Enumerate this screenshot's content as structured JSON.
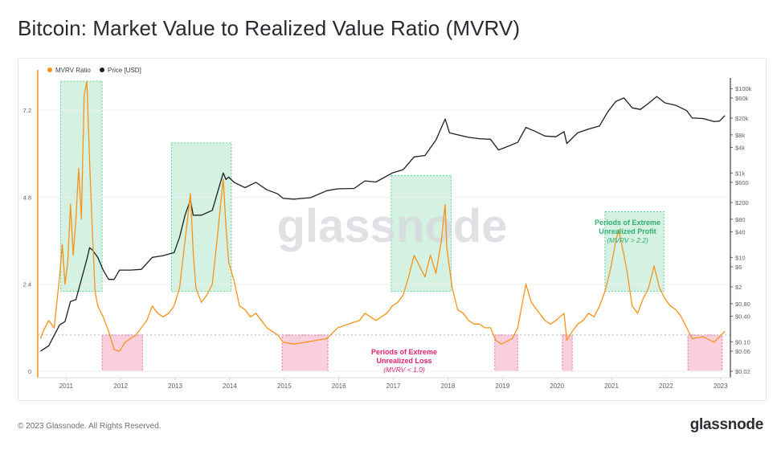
{
  "title": "Bitcoin: Market Value to Realized Value Ratio (MVRV)",
  "footer": "© 2023 Glassnode. All Rights Reserved.",
  "brand": "glassnode",
  "watermark": "glassnode",
  "colors": {
    "mvrv": "#f7931a",
    "price": "#1d1f22",
    "profit_fill": "#cdeedd",
    "profit_stroke": "#3ec486",
    "loss_fill": "#f9c5d7",
    "loss_stroke": "#ec4c86",
    "profit_text": "#2fae6f",
    "loss_text": "#e3226b"
  },
  "annotations": {
    "profit": {
      "line1": "Periods of Extreme",
      "line2": "Unrealized Profit",
      "line3": "(MVRV > 2.2)"
    },
    "loss": {
      "line1": "Periods of Extreme",
      "line2": "Unrealized Loss",
      "line3": "(MVRV < 1.0)"
    }
  },
  "chart_data": {
    "type": "line",
    "title": "Bitcoin: Market Value to Realized Value Ratio (MVRV)",
    "legend": {
      "placement": "top-left",
      "entries": [
        "MVRV Ratio",
        "Price [USD]"
      ]
    },
    "x_ticks": [
      "2011",
      "2012",
      "2013",
      "2014",
      "2015",
      "2016",
      "2017",
      "2018",
      "2019",
      "2020",
      "2021",
      "2022",
      "2023"
    ],
    "y_left": {
      "ticks": [
        "0",
        "2.4",
        "4.8",
        "7.2"
      ],
      "range": [
        0,
        8
      ]
    },
    "y_right": {
      "scale": "log",
      "ticks": [
        "$100k",
        "$60k",
        "$20k",
        "$8k",
        "$4k",
        "$1k",
        "$600",
        "$200",
        "$80",
        "$40",
        "$10",
        "$6",
        "$2",
        "$0.80",
        "$0.40",
        "$0.10",
        "$0.06",
        "$0.02"
      ]
    },
    "thresholds": {
      "profit": 2.2,
      "loss": 1.0
    },
    "series": [
      {
        "name": "MVRV Ratio",
        "axis": "left",
        "points": [
          [
            2010.55,
            0.9
          ],
          [
            2010.6,
            1.1
          ],
          [
            2010.7,
            1.4
          ],
          [
            2010.8,
            1.2
          ],
          [
            2010.9,
            2.6
          ],
          [
            2010.95,
            3.5
          ],
          [
            2011.0,
            2.4
          ],
          [
            2011.05,
            3.0
          ],
          [
            2011.1,
            4.6
          ],
          [
            2011.15,
            3.2
          ],
          [
            2011.2,
            4.2
          ],
          [
            2011.25,
            5.6
          ],
          [
            2011.3,
            4.2
          ],
          [
            2011.35,
            7.6
          ],
          [
            2011.4,
            8.0
          ],
          [
            2011.45,
            5.8
          ],
          [
            2011.5,
            3.9
          ],
          [
            2011.55,
            2.2
          ],
          [
            2011.6,
            1.8
          ],
          [
            2011.7,
            1.5
          ],
          [
            2011.8,
            1.1
          ],
          [
            2011.9,
            0.6
          ],
          [
            2012.0,
            0.55
          ],
          [
            2012.1,
            0.8
          ],
          [
            2012.2,
            0.9
          ],
          [
            2012.3,
            1.0
          ],
          [
            2012.4,
            1.2
          ],
          [
            2012.5,
            1.4
          ],
          [
            2012.6,
            1.8
          ],
          [
            2012.7,
            1.6
          ],
          [
            2012.8,
            1.5
          ],
          [
            2012.9,
            1.6
          ],
          [
            2013.0,
            1.8
          ],
          [
            2013.1,
            2.3
          ],
          [
            2013.2,
            3.6
          ],
          [
            2013.3,
            4.9
          ],
          [
            2013.35,
            3.3
          ],
          [
            2013.4,
            2.3
          ],
          [
            2013.5,
            1.9
          ],
          [
            2013.6,
            2.1
          ],
          [
            2013.7,
            2.4
          ],
          [
            2013.8,
            3.8
          ],
          [
            2013.9,
            5.3
          ],
          [
            2013.95,
            4.0
          ],
          [
            2014.0,
            3.0
          ],
          [
            2014.1,
            2.5
          ],
          [
            2014.2,
            1.8
          ],
          [
            2014.3,
            1.7
          ],
          [
            2014.4,
            1.5
          ],
          [
            2014.5,
            1.6
          ],
          [
            2014.6,
            1.4
          ],
          [
            2014.7,
            1.2
          ],
          [
            2014.8,
            1.1
          ],
          [
            2014.9,
            1.0
          ],
          [
            2015.0,
            0.8
          ],
          [
            2015.2,
            0.75
          ],
          [
            2015.4,
            0.8
          ],
          [
            2015.6,
            0.85
          ],
          [
            2015.8,
            0.9
          ],
          [
            2016.0,
            1.2
          ],
          [
            2016.2,
            1.3
          ],
          [
            2016.4,
            1.4
          ],
          [
            2016.5,
            1.6
          ],
          [
            2016.7,
            1.4
          ],
          [
            2016.9,
            1.6
          ],
          [
            2017.0,
            1.8
          ],
          [
            2017.1,
            1.9
          ],
          [
            2017.2,
            2.1
          ],
          [
            2017.3,
            2.6
          ],
          [
            2017.4,
            3.2
          ],
          [
            2017.5,
            2.9
          ],
          [
            2017.6,
            2.6
          ],
          [
            2017.7,
            3.2
          ],
          [
            2017.8,
            2.7
          ],
          [
            2017.9,
            3.6
          ],
          [
            2017.97,
            4.6
          ],
          [
            2018.0,
            3.4
          ],
          [
            2018.1,
            2.3
          ],
          [
            2018.2,
            1.7
          ],
          [
            2018.3,
            1.6
          ],
          [
            2018.4,
            1.4
          ],
          [
            2018.5,
            1.3
          ],
          [
            2018.6,
            1.3
          ],
          [
            2018.7,
            1.2
          ],
          [
            2018.8,
            1.2
          ],
          [
            2018.9,
            0.85
          ],
          [
            2019.0,
            0.75
          ],
          [
            2019.2,
            0.9
          ],
          [
            2019.3,
            1.2
          ],
          [
            2019.45,
            2.4
          ],
          [
            2019.55,
            1.9
          ],
          [
            2019.7,
            1.6
          ],
          [
            2019.8,
            1.4
          ],
          [
            2019.9,
            1.3
          ],
          [
            2020.0,
            1.4
          ],
          [
            2020.15,
            1.6
          ],
          [
            2020.2,
            0.85
          ],
          [
            2020.3,
            1.1
          ],
          [
            2020.4,
            1.3
          ],
          [
            2020.5,
            1.4
          ],
          [
            2020.6,
            1.6
          ],
          [
            2020.7,
            1.5
          ],
          [
            2020.8,
            1.8
          ],
          [
            2020.9,
            2.2
          ],
          [
            2021.0,
            2.8
          ],
          [
            2021.1,
            3.6
          ],
          [
            2021.15,
            3.9
          ],
          [
            2021.25,
            3.2
          ],
          [
            2021.3,
            2.8
          ],
          [
            2021.4,
            1.8
          ],
          [
            2021.5,
            1.6
          ],
          [
            2021.6,
            2.0
          ],
          [
            2021.7,
            2.3
          ],
          [
            2021.8,
            2.9
          ],
          [
            2021.9,
            2.3
          ],
          [
            2022.0,
            2.0
          ],
          [
            2022.1,
            1.8
          ],
          [
            2022.2,
            1.7
          ],
          [
            2022.3,
            1.5
          ],
          [
            2022.4,
            1.2
          ],
          [
            2022.5,
            0.9
          ],
          [
            2022.7,
            0.95
          ],
          [
            2022.9,
            0.8
          ],
          [
            2023.0,
            0.95
          ],
          [
            2023.1,
            1.1
          ]
        ]
      },
      {
        "name": "Price [USD]",
        "axis": "right",
        "points": [
          [
            2010.55,
            0.06
          ],
          [
            2010.7,
            0.08
          ],
          [
            2010.9,
            0.25
          ],
          [
            2011.0,
            0.3
          ],
          [
            2011.1,
            0.9
          ],
          [
            2011.2,
            1.0
          ],
          [
            2011.3,
            3.0
          ],
          [
            2011.4,
            9.0
          ],
          [
            2011.45,
            17
          ],
          [
            2011.5,
            15
          ],
          [
            2011.6,
            10
          ],
          [
            2011.7,
            5.0
          ],
          [
            2011.8,
            3.0
          ],
          [
            2011.9,
            3.0
          ],
          [
            2012.0,
            5.0
          ],
          [
            2012.2,
            5.0
          ],
          [
            2012.4,
            5.2
          ],
          [
            2012.6,
            10
          ],
          [
            2012.8,
            11
          ],
          [
            2013.0,
            13
          ],
          [
            2013.1,
            30
          ],
          [
            2013.2,
            100
          ],
          [
            2013.3,
            230
          ],
          [
            2013.35,
            100
          ],
          [
            2013.5,
            100
          ],
          [
            2013.7,
            130
          ],
          [
            2013.9,
            1000
          ],
          [
            2013.95,
            700
          ],
          [
            2014.0,
            800
          ],
          [
            2014.1,
            600
          ],
          [
            2014.3,
            450
          ],
          [
            2014.5,
            600
          ],
          [
            2014.7,
            400
          ],
          [
            2014.9,
            320
          ],
          [
            2015.0,
            250
          ],
          [
            2015.2,
            240
          ],
          [
            2015.5,
            260
          ],
          [
            2015.8,
            380
          ],
          [
            2016.0,
            420
          ],
          [
            2016.3,
            430
          ],
          [
            2016.5,
            650
          ],
          [
            2016.7,
            610
          ],
          [
            2017.0,
            1000
          ],
          [
            2017.2,
            1200
          ],
          [
            2017.4,
            2400
          ],
          [
            2017.6,
            2600
          ],
          [
            2017.8,
            6000
          ],
          [
            2017.97,
            19000
          ],
          [
            2018.05,
            9000
          ],
          [
            2018.2,
            8000
          ],
          [
            2018.4,
            7000
          ],
          [
            2018.6,
            6500
          ],
          [
            2018.8,
            6300
          ],
          [
            2018.95,
            3500
          ],
          [
            2019.0,
            3700
          ],
          [
            2019.3,
            5300
          ],
          [
            2019.45,
            12000
          ],
          [
            2019.6,
            10000
          ],
          [
            2019.8,
            7500
          ],
          [
            2020.0,
            7200
          ],
          [
            2020.15,
            9500
          ],
          [
            2020.2,
            5000
          ],
          [
            2020.4,
            9000
          ],
          [
            2020.6,
            11000
          ],
          [
            2020.8,
            13000
          ],
          [
            2020.95,
            28000
          ],
          [
            2021.1,
            50000
          ],
          [
            2021.25,
            60000
          ],
          [
            2021.4,
            35000
          ],
          [
            2021.55,
            32000
          ],
          [
            2021.7,
            45000
          ],
          [
            2021.85,
            65000
          ],
          [
            2022.0,
            46000
          ],
          [
            2022.2,
            40000
          ],
          [
            2022.4,
            30000
          ],
          [
            2022.5,
            20000
          ],
          [
            2022.7,
            19500
          ],
          [
            2022.9,
            16500
          ],
          [
            2023.0,
            17000
          ],
          [
            2023.1,
            23000
          ]
        ]
      }
    ],
    "bands_profit": [
      [
        2010.92,
        2011.68,
        2.2,
        8.0
      ],
      [
        2012.95,
        2014.05,
        2.2,
        6.3
      ],
      [
        2016.98,
        2018.08,
        2.2,
        5.4
      ],
      [
        2020.9,
        2021.98,
        2.2,
        4.4
      ]
    ],
    "bands_loss": [
      [
        2011.68,
        2012.42,
        0,
        1.0
      ],
      [
        2014.98,
        2015.82,
        0,
        1.0
      ],
      [
        2018.88,
        2019.3,
        0,
        1.0
      ],
      [
        2020.12,
        2020.3,
        0,
        1.0
      ],
      [
        2022.42,
        2023.05,
        0,
        1.0
      ]
    ]
  }
}
